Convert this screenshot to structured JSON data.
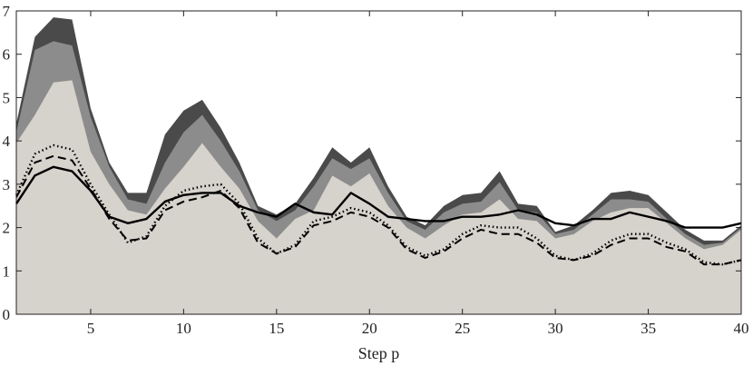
{
  "chart_data": {
    "type": "area",
    "title": "",
    "xlabel": "Step p",
    "ylabel": "",
    "xlim": [
      1,
      40
    ],
    "ylim": [
      0,
      7
    ],
    "xticks": [
      5,
      10,
      15,
      20,
      25,
      30,
      35,
      40
    ],
    "yticks": [
      0,
      1,
      2,
      3,
      4,
      5,
      6,
      7
    ],
    "grid": false,
    "x": [
      1,
      2,
      3,
      4,
      5,
      6,
      7,
      8,
      9,
      10,
      11,
      12,
      13,
      14,
      15,
      16,
      17,
      18,
      19,
      20,
      21,
      22,
      23,
      24,
      25,
      26,
      27,
      28,
      29,
      30,
      31,
      32,
      33,
      34,
      35,
      36,
      37,
      38,
      39,
      40
    ],
    "areas": [
      {
        "color": "#4a4a4a",
        "values": [
          4.4,
          6.4,
          6.85,
          6.8,
          4.75,
          3.5,
          2.8,
          2.8,
          4.15,
          4.7,
          4.95,
          4.3,
          3.5,
          2.5,
          2.3,
          2.55,
          3.15,
          3.85,
          3.5,
          3.85,
          2.95,
          2.25,
          2.05,
          2.5,
          2.75,
          2.8,
          3.3,
          2.55,
          2.5,
          1.9,
          2.05,
          2.4,
          2.8,
          2.85,
          2.75,
          2.35,
          1.95,
          1.7,
          1.7,
          2.05
        ]
      },
      {
        "color": "#8c8c8c",
        "values": [
          4.2,
          6.1,
          6.3,
          6.2,
          4.55,
          3.4,
          2.65,
          2.55,
          3.5,
          4.2,
          4.6,
          4.0,
          3.3,
          2.4,
          2.15,
          2.4,
          2.95,
          3.6,
          3.35,
          3.6,
          2.8,
          2.15,
          1.95,
          2.35,
          2.55,
          2.6,
          3.05,
          2.4,
          2.35,
          1.85,
          1.95,
          2.3,
          2.65,
          2.65,
          2.6,
          2.2,
          1.85,
          1.6,
          1.65,
          2.0
        ]
      },
      {
        "color": "#d6d2cc",
        "values": [
          3.95,
          4.6,
          5.35,
          5.4,
          3.75,
          3.0,
          2.4,
          2.3,
          2.9,
          3.4,
          3.95,
          3.4,
          2.9,
          2.15,
          1.75,
          2.2,
          2.4,
          3.2,
          2.95,
          3.25,
          2.5,
          2.0,
          1.75,
          2.05,
          2.3,
          2.35,
          2.65,
          2.2,
          2.15,
          1.75,
          1.85,
          2.15,
          2.35,
          2.45,
          2.45,
          2.1,
          1.75,
          1.5,
          1.6,
          1.95
        ]
      }
    ],
    "series": [
      {
        "style": "solid",
        "values": [
          2.55,
          3.2,
          3.4,
          3.3,
          2.85,
          2.25,
          2.1,
          2.2,
          2.6,
          2.75,
          2.8,
          2.8,
          2.5,
          2.35,
          2.25,
          2.55,
          2.35,
          2.3,
          2.8,
          2.55,
          2.25,
          2.2,
          2.15,
          2.15,
          2.25,
          2.25,
          2.3,
          2.4,
          2.3,
          2.1,
          2.05,
          2.2,
          2.2,
          2.35,
          2.25,
          2.15,
          2.0,
          2.0,
          2.0,
          2.1
        ]
      },
      {
        "style": "dotted",
        "values": [
          2.75,
          3.7,
          3.9,
          3.8,
          3.0,
          2.3,
          1.65,
          1.8,
          2.5,
          2.85,
          2.95,
          3.0,
          2.55,
          1.75,
          1.4,
          1.6,
          2.15,
          2.25,
          2.45,
          2.35,
          2.05,
          1.55,
          1.35,
          1.5,
          1.85,
          2.05,
          2.0,
          2.0,
          1.75,
          1.35,
          1.25,
          1.4,
          1.7,
          1.85,
          1.85,
          1.65,
          1.5,
          1.2,
          1.15,
          1.25
        ]
      },
      {
        "style": "dashed",
        "values": [
          2.7,
          3.5,
          3.65,
          3.55,
          2.9,
          2.2,
          1.7,
          1.75,
          2.4,
          2.6,
          2.7,
          2.85,
          2.45,
          1.65,
          1.4,
          1.55,
          2.05,
          2.15,
          2.35,
          2.25,
          2.0,
          1.5,
          1.3,
          1.45,
          1.75,
          1.95,
          1.85,
          1.85,
          1.65,
          1.3,
          1.25,
          1.35,
          1.6,
          1.75,
          1.75,
          1.55,
          1.45,
          1.15,
          1.15,
          1.25
        ]
      }
    ]
  }
}
